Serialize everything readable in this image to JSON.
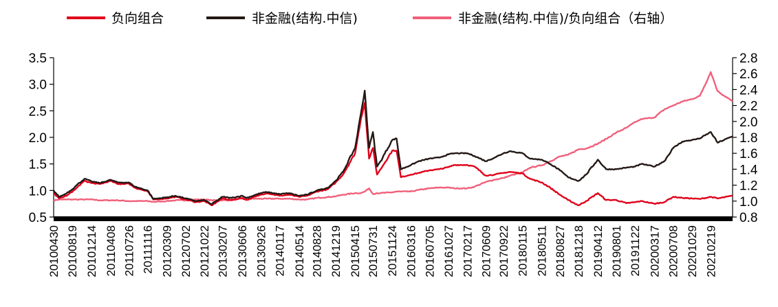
{
  "chart_data": {
    "type": "line",
    "title": "",
    "xlabel": "",
    "ylabel": "",
    "y2label": "",
    "ylim": [
      0.5,
      3.5
    ],
    "y2lim": [
      0.8,
      2.8
    ],
    "yticks": [
      "0.5",
      "1.0",
      "1.5",
      "2.0",
      "2.5",
      "3.0",
      "3.5"
    ],
    "y2ticks": [
      "0.8",
      "1.0",
      "1.2",
      "1.4",
      "1.6",
      "1.8",
      "2.0",
      "2.2",
      "2.4",
      "2.6",
      "2.8"
    ],
    "grid": false,
    "legend_position": "top",
    "categories": [
      "20100430",
      "20100819",
      "20101214",
      "20110408",
      "20110726",
      "20111116",
      "20120309",
      "20120702",
      "20121022",
      "20130207",
      "20130606",
      "20130926",
      "20140117",
      "20140514",
      "20140828",
      "20141219",
      "20150415",
      "20150731",
      "20151124",
      "20160316",
      "20160705",
      "20161027",
      "20170217",
      "20170609",
      "20170922",
      "20180115",
      "20180511",
      "20180827",
      "20181218",
      "20190412",
      "20190801",
      "20191122",
      "20200317",
      "20200708",
      "20201029",
      "20210219"
    ],
    "x_end": "20210630",
    "series": [
      {
        "name": "负向组合",
        "color": "#e0001a",
        "axis": "left",
        "points": [
          [
            "20100430",
            0.95
          ],
          [
            "20100601",
            0.85
          ],
          [
            "20100701",
            0.88
          ],
          [
            "20100819",
            0.97
          ],
          [
            "20100915",
            1.05
          ],
          [
            "20101101",
            1.18
          ],
          [
            "20101214",
            1.14
          ],
          [
            "20110201",
            1.12
          ],
          [
            "20110408",
            1.18
          ],
          [
            "20110520",
            1.12
          ],
          [
            "20110726",
            1.13
          ],
          [
            "20110901",
            1.05
          ],
          [
            "20111116",
            0.98
          ],
          [
            "20111220",
            0.83
          ],
          [
            "20120309",
            0.85
          ],
          [
            "20120501",
            0.88
          ],
          [
            "20120702",
            0.83
          ],
          [
            "20120901",
            0.78
          ],
          [
            "20121022",
            0.8
          ],
          [
            "20121204",
            0.72
          ],
          [
            "20130207",
            0.85
          ],
          [
            "20130401",
            0.82
          ],
          [
            "20130606",
            0.86
          ],
          [
            "20130701",
            0.82
          ],
          [
            "20130926",
            0.92
          ],
          [
            "20131101",
            0.95
          ],
          [
            "20140117",
            0.9
          ],
          [
            "20140314",
            0.92
          ],
          [
            "20140514",
            0.88
          ],
          [
            "20140701",
            0.9
          ],
          [
            "20140828",
            0.98
          ],
          [
            "20141101",
            1.02
          ],
          [
            "20141219",
            1.15
          ],
          [
            "20150201",
            1.3
          ],
          [
            "20150415",
            1.7
          ],
          [
            "20150520",
            2.35
          ],
          [
            "20150612",
            2.65
          ],
          [
            "20150708",
            1.6
          ],
          [
            "20150731",
            1.8
          ],
          [
            "20150825",
            1.3
          ],
          [
            "20150915",
            1.4
          ],
          [
            "20151124",
            1.75
          ],
          [
            "20151220",
            1.75
          ],
          [
            "20160115",
            1.25
          ],
          [
            "20160316",
            1.3
          ],
          [
            "20160501",
            1.33
          ],
          [
            "20160705",
            1.38
          ],
          [
            "20160901",
            1.4
          ],
          [
            "20161027",
            1.44
          ],
          [
            "20161201",
            1.48
          ],
          [
            "20170217",
            1.48
          ],
          [
            "20170401",
            1.45
          ],
          [
            "20170609",
            1.28
          ],
          [
            "20170801",
            1.3
          ],
          [
            "20170922",
            1.33
          ],
          [
            "20171101",
            1.35
          ],
          [
            "20180115",
            1.32
          ],
          [
            "20180301",
            1.22
          ],
          [
            "20180511",
            1.15
          ],
          [
            "20180701",
            1.05
          ],
          [
            "20180827",
            0.92
          ],
          [
            "20181015",
            0.82
          ],
          [
            "20181218",
            0.72
          ],
          [
            "20190201",
            0.8
          ],
          [
            "20190412",
            0.95
          ],
          [
            "20190601",
            0.82
          ],
          [
            "20190801",
            0.82
          ],
          [
            "20191001",
            0.76
          ],
          [
            "20191122",
            0.78
          ],
          [
            "20200101",
            0.8
          ],
          [
            "20200317",
            0.75
          ],
          [
            "20200515",
            0.78
          ],
          [
            "20200708",
            0.88
          ],
          [
            "20200901",
            0.86
          ],
          [
            "20201029",
            0.85
          ],
          [
            "20201215",
            0.84
          ],
          [
            "20210219",
            0.88
          ],
          [
            "20210401",
            0.85
          ],
          [
            "20210630",
            0.9
          ]
        ]
      },
      {
        "name": "非金融(结构.中信)",
        "color": "#231815",
        "axis": "left",
        "points": [
          [
            "20100430",
            1.0
          ],
          [
            "20100601",
            0.88
          ],
          [
            "20100701",
            0.92
          ],
          [
            "20100819",
            1.02
          ],
          [
            "20100915",
            1.1
          ],
          [
            "20101101",
            1.22
          ],
          [
            "20101214",
            1.17
          ],
          [
            "20110201",
            1.14
          ],
          [
            "20110408",
            1.2
          ],
          [
            "20110520",
            1.15
          ],
          [
            "20110726",
            1.15
          ],
          [
            "20110901",
            1.07
          ],
          [
            "20111116",
            1.0
          ],
          [
            "20111220",
            0.84
          ],
          [
            "20120309",
            0.87
          ],
          [
            "20120501",
            0.9
          ],
          [
            "20120702",
            0.85
          ],
          [
            "20120901",
            0.8
          ],
          [
            "20121022",
            0.82
          ],
          [
            "20121204",
            0.74
          ],
          [
            "20130207",
            0.88
          ],
          [
            "20130401",
            0.86
          ],
          [
            "20130606",
            0.9
          ],
          [
            "20130701",
            0.86
          ],
          [
            "20130926",
            0.95
          ],
          [
            "20131101",
            0.97
          ],
          [
            "20140117",
            0.93
          ],
          [
            "20140314",
            0.95
          ],
          [
            "20140514",
            0.9
          ],
          [
            "20140701",
            0.92
          ],
          [
            "20140828",
            1.0
          ],
          [
            "20141101",
            1.05
          ],
          [
            "20141219",
            1.18
          ],
          [
            "20150201",
            1.35
          ],
          [
            "20150415",
            1.8
          ],
          [
            "20150520",
            2.45
          ],
          [
            "20150612",
            2.88
          ],
          [
            "20150708",
            1.8
          ],
          [
            "20150731",
            2.1
          ],
          [
            "20150825",
            1.45
          ],
          [
            "20150915",
            1.55
          ],
          [
            "20151124",
            1.95
          ],
          [
            "20151220",
            1.98
          ],
          [
            "20160115",
            1.4
          ],
          [
            "20160316",
            1.48
          ],
          [
            "20160501",
            1.55
          ],
          [
            "20160705",
            1.6
          ],
          [
            "20160901",
            1.62
          ],
          [
            "20161027",
            1.68
          ],
          [
            "20161201",
            1.7
          ],
          [
            "20170217",
            1.7
          ],
          [
            "20170401",
            1.65
          ],
          [
            "20170609",
            1.55
          ],
          [
            "20170801",
            1.62
          ],
          [
            "20170922",
            1.7
          ],
          [
            "20171101",
            1.74
          ],
          [
            "20180115",
            1.7
          ],
          [
            "20180301",
            1.6
          ],
          [
            "20180511",
            1.58
          ],
          [
            "20180701",
            1.5
          ],
          [
            "20180827",
            1.38
          ],
          [
            "20181015",
            1.25
          ],
          [
            "20181218",
            1.18
          ],
          [
            "20190201",
            1.3
          ],
          [
            "20190412",
            1.58
          ],
          [
            "20190601",
            1.4
          ],
          [
            "20190801",
            1.4
          ],
          [
            "20191001",
            1.43
          ],
          [
            "20191122",
            1.45
          ],
          [
            "20200101",
            1.5
          ],
          [
            "20200317",
            1.45
          ],
          [
            "20200515",
            1.55
          ],
          [
            "20200708",
            1.8
          ],
          [
            "20200901",
            1.92
          ],
          [
            "20201029",
            1.95
          ],
          [
            "20201215",
            1.98
          ],
          [
            "20210219",
            2.1
          ],
          [
            "20210401",
            1.9
          ],
          [
            "20210630",
            2.02
          ]
        ]
      },
      {
        "name": "非金融(结构.中信)/负向组合（右轴）",
        "color": "#f0607a",
        "axis": "right",
        "points": [
          [
            "20100430",
            1.01
          ],
          [
            "20100601",
            1.02
          ],
          [
            "20100701",
            1.02
          ],
          [
            "20100819",
            1.02
          ],
          [
            "20100915",
            1.02
          ],
          [
            "20101101",
            1.02
          ],
          [
            "20101214",
            1.02
          ],
          [
            "20110201",
            1.01
          ],
          [
            "20110408",
            1.01
          ],
          [
            "20110520",
            1.01
          ],
          [
            "20110726",
            1.0
          ],
          [
            "20110901",
            1.0
          ],
          [
            "20111116",
            1.0
          ],
          [
            "20111220",
            0.99
          ],
          [
            "20120309",
            1.0
          ],
          [
            "20120501",
            1.01
          ],
          [
            "20120702",
            1.01
          ],
          [
            "20120901",
            1.02
          ],
          [
            "20121022",
            1.02
          ],
          [
            "20121204",
            1.01
          ],
          [
            "20130207",
            1.01
          ],
          [
            "20130401",
            1.01
          ],
          [
            "20130606",
            1.03
          ],
          [
            "20130701",
            1.03
          ],
          [
            "20130926",
            1.03
          ],
          [
            "20131101",
            1.03
          ],
          [
            "20140117",
            1.03
          ],
          [
            "20140314",
            1.03
          ],
          [
            "20140514",
            1.02
          ],
          [
            "20140701",
            1.02
          ],
          [
            "20140828",
            1.04
          ],
          [
            "20141101",
            1.05
          ],
          [
            "20141219",
            1.06
          ],
          [
            "20150201",
            1.08
          ],
          [
            "20150415",
            1.1
          ],
          [
            "20150520",
            1.1
          ],
          [
            "20150612",
            1.12
          ],
          [
            "20150708",
            1.16
          ],
          [
            "20150731",
            1.09
          ],
          [
            "20150825",
            1.1
          ],
          [
            "20150915",
            1.1
          ],
          [
            "20151124",
            1.11
          ],
          [
            "20151220",
            1.12
          ],
          [
            "20160115",
            1.12
          ],
          [
            "20160316",
            1.12
          ],
          [
            "20160501",
            1.14
          ],
          [
            "20160705",
            1.16
          ],
          [
            "20160901",
            1.17
          ],
          [
            "20161027",
            1.17
          ],
          [
            "20161201",
            1.16
          ],
          [
            "20170217",
            1.16
          ],
          [
            "20170401",
            1.18
          ],
          [
            "20170609",
            1.24
          ],
          [
            "20170801",
            1.27
          ],
          [
            "20170922",
            1.29
          ],
          [
            "20171101",
            1.32
          ],
          [
            "20180115",
            1.36
          ],
          [
            "20180301",
            1.42
          ],
          [
            "20180511",
            1.45
          ],
          [
            "20180701",
            1.5
          ],
          [
            "20180827",
            1.56
          ],
          [
            "20181015",
            1.58
          ],
          [
            "20181218",
            1.65
          ],
          [
            "20190201",
            1.66
          ],
          [
            "20190412",
            1.72
          ],
          [
            "20190601",
            1.78
          ],
          [
            "20190801",
            1.86
          ],
          [
            "20191001",
            1.92
          ],
          [
            "20191122",
            1.99
          ],
          [
            "20200101",
            2.03
          ],
          [
            "20200317",
            2.05
          ],
          [
            "20200515",
            2.15
          ],
          [
            "20200708",
            2.2
          ],
          [
            "20200901",
            2.25
          ],
          [
            "20201029",
            2.28
          ],
          [
            "20201215",
            2.32
          ],
          [
            "20210219",
            2.62
          ],
          [
            "20210401",
            2.38
          ],
          [
            "20210630",
            2.25
          ]
        ]
      }
    ]
  }
}
